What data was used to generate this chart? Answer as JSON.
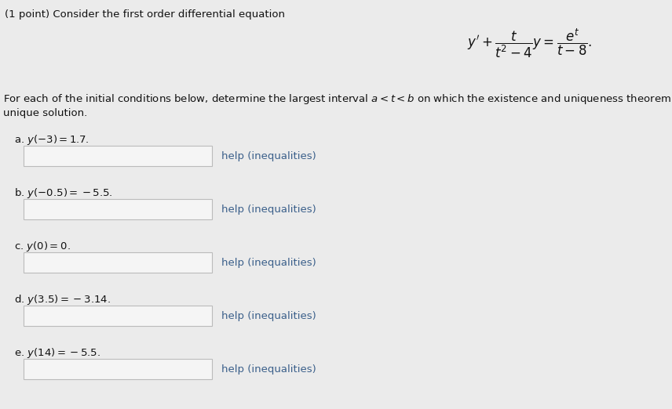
{
  "background_color": "#ebebeb",
  "title_text": "(1 point) Consider the first order differential equation",
  "paragraph_line1": "For each of the initial conditions below, determine the largest interval $a < t < b$ on which the existence and uniqueness theorem for firs",
  "paragraph_line2": "unique solution.",
  "parts_letters": [
    "a.",
    "b.",
    "c.",
    "d.",
    "e."
  ],
  "parts_conditions": [
    "$y(-3) = 1.7.$",
    "$y(-0.5) = -5.5.$",
    "$y(0) = 0.$",
    "$y(3.5) = -3.14.$",
    "$y(14) = -5.5.$"
  ],
  "help_text": "help (inequalities)",
  "help_color": "#3a5f8a",
  "box_color": "#f5f5f5",
  "box_edge_color": "#bbbbbb",
  "text_color": "#111111",
  "font_size_title": 9.5,
  "font_size_para": 9.5,
  "font_size_parts": 9.5,
  "font_size_eq": 12
}
